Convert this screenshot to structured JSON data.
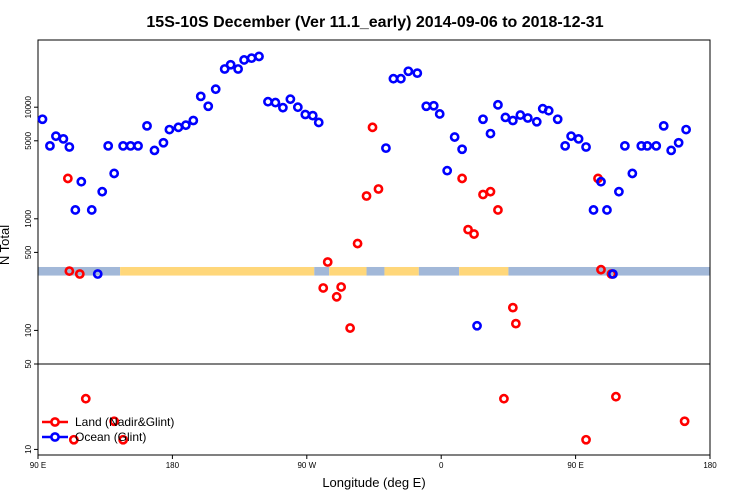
{
  "chart_data": {
    "type": "scatter",
    "title": "15S-10S December (Ver 11.1_early)   2014-09-06 to 2018-12-31",
    "xlabel": "Longitude (deg E)",
    "ylabel": "N Total",
    "x_axis": {
      "scale": "linear",
      "lim": [
        90,
        540
      ],
      "ticks": [
        {
          "value": 90,
          "label": "90 E"
        },
        {
          "value": 180,
          "label": "180"
        },
        {
          "value": 270,
          "label": "90 W"
        },
        {
          "value": 360,
          "label": "0"
        },
        {
          "value": 450,
          "label": "90 E"
        },
        {
          "value": 540,
          "label": "180"
        }
      ]
    },
    "y_axis": {
      "scale": "log",
      "upper_panel": {
        "lim": [
          50,
          40000
        ],
        "ticks": [
          {
            "value": 100,
            "label": "100"
          },
          {
            "value": 500,
            "label": "500"
          },
          {
            "value": 1000,
            "label": "1000"
          },
          {
            "value": 5000,
            "label": "5000"
          },
          {
            "value": 10000,
            "label": "10000"
          }
        ]
      },
      "lower_panel": {
        "lim": [
          9,
          50
        ],
        "ticks": [
          {
            "value": 10,
            "label": "10"
          },
          {
            "value": 50,
            "label": "50"
          }
        ]
      }
    },
    "grid": false,
    "legend": {
      "position": "bottom-left"
    },
    "series": [
      {
        "name": "Land (Nadir&Glint)",
        "color": "#ff0000",
        "points": [
          [
            110,
            2300
          ],
          [
            111,
            340
          ],
          [
            118,
            320
          ],
          [
            114,
            12
          ],
          [
            122,
            26
          ],
          [
            141,
            17
          ],
          [
            147,
            12
          ],
          [
            281,
            240
          ],
          [
            284,
            410
          ],
          [
            290,
            200
          ],
          [
            293,
            245
          ],
          [
            299,
            105
          ],
          [
            304,
            600
          ],
          [
            310,
            1600
          ],
          [
            314,
            6600
          ],
          [
            318,
            1850
          ],
          [
            374,
            2300
          ],
          [
            378,
            800
          ],
          [
            382,
            730
          ],
          [
            388,
            1650
          ],
          [
            393,
            1750
          ],
          [
            398,
            1200
          ],
          [
            402,
            26
          ],
          [
            408,
            160
          ],
          [
            410,
            115
          ],
          [
            457,
            12
          ],
          [
            465,
            2300
          ],
          [
            467,
            350
          ],
          [
            474,
            320
          ],
          [
            477,
            27
          ],
          [
            523,
            17
          ]
        ]
      },
      {
        "name": "Ocean (Glint)",
        "color": "#0000ff",
        "points": [
          [
            93,
            7800
          ],
          [
            98,
            4500
          ],
          [
            102,
            5500
          ],
          [
            107,
            5200
          ],
          [
            111,
            4400
          ],
          [
            115,
            1200
          ],
          [
            119,
            2150
          ],
          [
            126,
            1200
          ],
          [
            130,
            320
          ],
          [
            133,
            1750
          ],
          [
            137,
            4500
          ],
          [
            141,
            2550
          ],
          [
            147,
            4500
          ],
          [
            152,
            4500
          ],
          [
            157,
            4500
          ],
          [
            163,
            6800
          ],
          [
            168,
            4100
          ],
          [
            174,
            4800
          ],
          [
            178,
            6300
          ],
          [
            184,
            6600
          ],
          [
            189,
            6900
          ],
          [
            194,
            7600
          ],
          [
            199,
            12500
          ],
          [
            204,
            10200
          ],
          [
            209,
            14500
          ],
          [
            215,
            22000
          ],
          [
            219,
            24000
          ],
          [
            224,
            22000
          ],
          [
            228,
            26500
          ],
          [
            233,
            27500
          ],
          [
            238,
            28500
          ],
          [
            244,
            11200
          ],
          [
            249,
            11000
          ],
          [
            254,
            9900
          ],
          [
            259,
            11800
          ],
          [
            264,
            10000
          ],
          [
            269,
            8600
          ],
          [
            274,
            8400
          ],
          [
            278,
            7300
          ],
          [
            323,
            4300
          ],
          [
            328,
            18000
          ],
          [
            333,
            18000
          ],
          [
            338,
            21000
          ],
          [
            344,
            20200
          ],
          [
            350,
            10200
          ],
          [
            355,
            10300
          ],
          [
            359,
            8700
          ],
          [
            364,
            2700
          ],
          [
            369,
            5400
          ],
          [
            374,
            4200
          ],
          [
            384,
            110
          ],
          [
            388,
            7800
          ],
          [
            393,
            5800
          ],
          [
            398,
            10500
          ],
          [
            403,
            8100
          ],
          [
            408,
            7600
          ],
          [
            413,
            8500
          ],
          [
            418,
            8000
          ],
          [
            424,
            7400
          ],
          [
            428,
            9700
          ],
          [
            432,
            9300
          ],
          [
            438,
            7800
          ],
          [
            443,
            4500
          ],
          [
            447,
            5500
          ],
          [
            452,
            5200
          ],
          [
            457,
            4400
          ],
          [
            462,
            1200
          ],
          [
            467,
            2150
          ],
          [
            471,
            1200
          ],
          [
            475,
            320
          ],
          [
            479,
            1750
          ],
          [
            483,
            4500
          ],
          [
            488,
            2550
          ],
          [
            494,
            4500
          ],
          [
            498,
            4500
          ],
          [
            504,
            4500
          ],
          [
            509,
            6800
          ],
          [
            514,
            4100
          ],
          [
            519,
            4800
          ],
          [
            524,
            6300
          ]
        ]
      }
    ],
    "bands": {
      "value_range": [
        310,
        370
      ],
      "segments": [
        {
          "color": "#a2b8d8",
          "x": [
            90,
            145
          ]
        },
        {
          "color": "#ffd77a",
          "x": [
            145,
            275
          ]
        },
        {
          "color": "#a2b8d8",
          "x": [
            275,
            285
          ]
        },
        {
          "color": "#ffd77a",
          "x": [
            285,
            310
          ]
        },
        {
          "color": "#a2b8d8",
          "x": [
            310,
            322
          ]
        },
        {
          "color": "#ffd77a",
          "x": [
            322,
            345
          ]
        },
        {
          "color": "#a2b8d8",
          "x": [
            345,
            372
          ]
        },
        {
          "color": "#ffd77a",
          "x": [
            372,
            405
          ]
        },
        {
          "color": "#a2b8d8",
          "x": [
            405,
            540
          ]
        }
      ]
    }
  }
}
